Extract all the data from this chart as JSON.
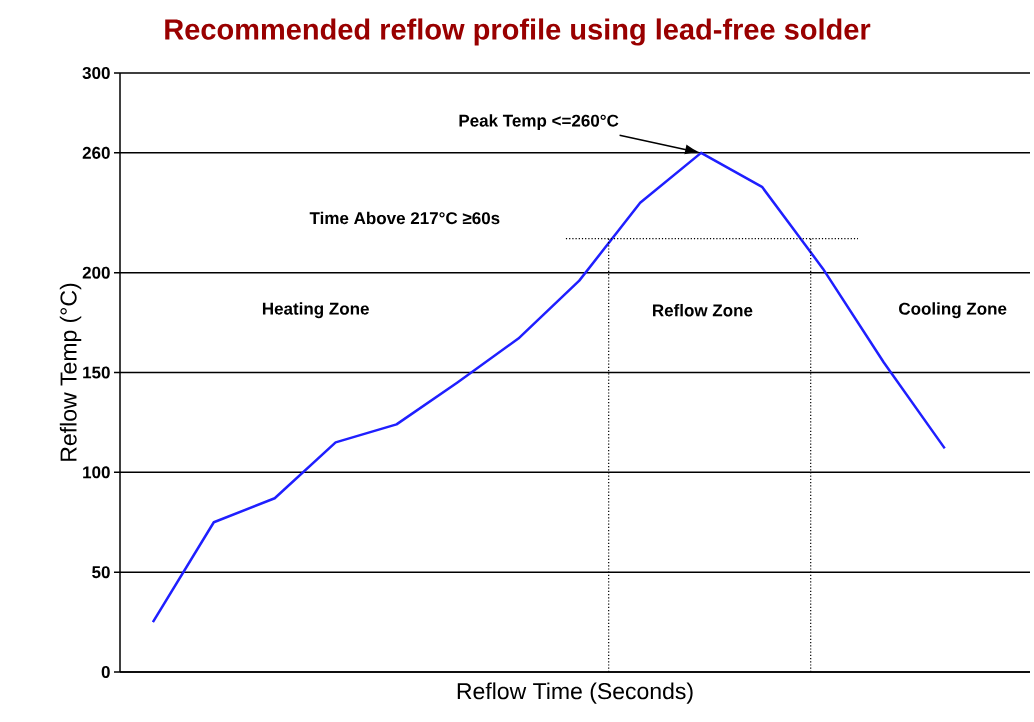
{
  "chart_data": {
    "type": "line",
    "title": "Recommended reflow profile using lead-free solder",
    "xlabel": "Reflow Time (Seconds)",
    "ylabel": "Reflow Temp (°C)",
    "categories": [
      null,
      null,
      null,
      null,
      null,
      null,
      null,
      null,
      null,
      null,
      null,
      null,
      null,
      null
    ],
    "series": [
      {
        "color": "#1f1fff",
        "values": [
          25,
          75,
          87,
          115,
          124,
          145,
          167,
          196,
          235,
          260,
          243,
          202,
          155,
          112
        ]
      }
    ],
    "ylim": [
      0,
      300
    ],
    "yticks": [
      0,
      50,
      100,
      150,
      200,
      260,
      300
    ],
    "grid": "y",
    "tick_labels": "y",
    "marker": "none",
    "line_style": "solid",
    "ref_lines": [
      {
        "axis": "y",
        "value": 217,
        "line_style": "dotted",
        "color": "#000000"
      }
    ],
    "annotations": [
      "Peak Temp <=260°C",
      "Time Above 217°C ≥60s",
      "Heating Zone",
      "Reflow Zone",
      "Cooling Zone"
    ]
  }
}
